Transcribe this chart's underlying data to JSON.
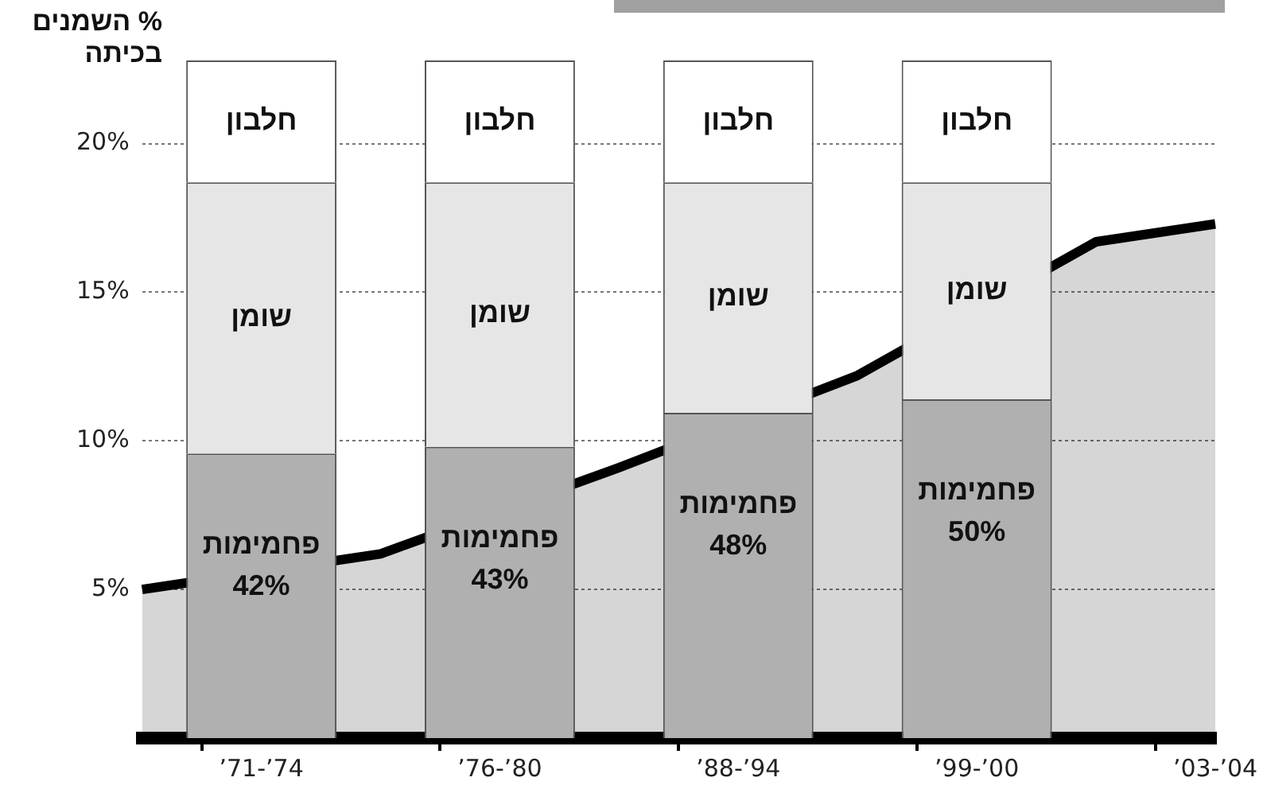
{
  "chart_data": {
    "type": "bar",
    "ylabel": "% השמנים בכיתה",
    "stacked": true,
    "categories": [
      null,
      "’71-’74",
      null,
      "’76-’80",
      null,
      "’88-’94",
      null,
      "’99-’00",
      null,
      "’03-’04"
    ],
    "ylim": [
      0,
      22.8
    ],
    "yticks": [
      {
        "value": 5,
        "label": "5%"
      },
      {
        "value": 10,
        "label": "10%"
      },
      {
        "value": 15,
        "label": "15%"
      },
      {
        "value": 20,
        "label": "20%"
      }
    ],
    "y2lim": [
      0,
      100
    ],
    "grid": "y",
    "legend": false,
    "series": [
      {
        "type": "area",
        "color": "#000000",
        "values": [
          5,
          null,
          6.2,
          null,
          9.1,
          null,
          12.2,
          null,
          16.7,
          17.3
        ]
      },
      {
        "name": "פחמימות",
        "color": "#b0b0b0",
        "axis": "y2",
        "values": [
          null,
          42,
          null,
          43,
          null,
          48,
          null,
          50,
          null,
          null
        ],
        "value_labels": [
          null,
          "42%",
          null,
          "43%",
          null,
          "48%",
          null,
          "50%",
          null,
          null
        ]
      },
      {
        "name": "שומן",
        "color": "#e6e6e6",
        "axis": "y2",
        "values": [
          null,
          40,
          null,
          39,
          null,
          34,
          null,
          32,
          null,
          null
        ]
      },
      {
        "name": "חלבון",
        "color": "#ffffff",
        "axis": "y2",
        "values": [
          null,
          18,
          null,
          18,
          null,
          18,
          null,
          18,
          null,
          null
        ]
      }
    ]
  }
}
